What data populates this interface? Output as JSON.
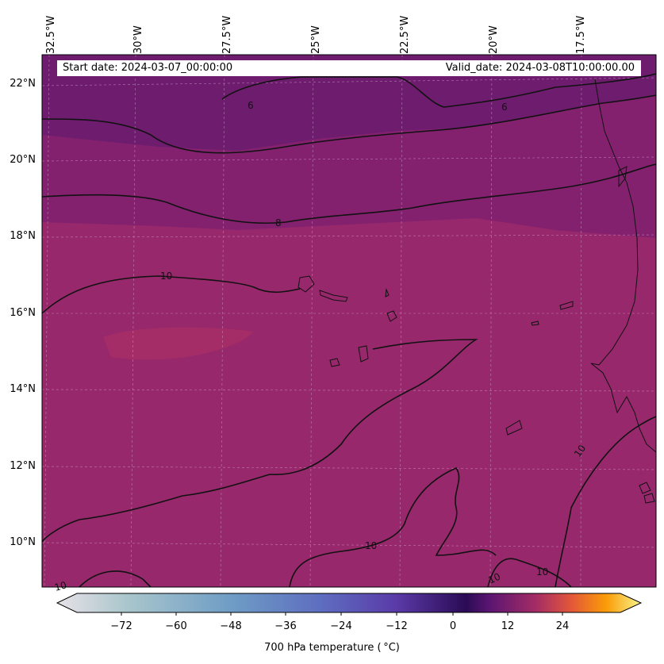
{
  "banner": {
    "start_date": "Start date: 2024-03-07_00:00:00",
    "valid_date": "Valid_date: 2024-03-08T10:00:00.00"
  },
  "map": {
    "longitude_labels": [
      "32.5°W",
      "30°W",
      "27.5°W",
      "25°W",
      "22.5°W",
      "20°W",
      "17.5°W"
    ],
    "latitude_labels": [
      "22°N",
      "20°N",
      "18°N",
      "16°N",
      "14°N",
      "12°N",
      "10°N"
    ],
    "contour_labels": [
      "6",
      "6",
      "8",
      "10",
      "10",
      "10",
      "10",
      "10",
      "10"
    ],
    "colors": {
      "cold_band": "#6e1c6e",
      "mid_band": "#83216f",
      "warm_band": "#97286c",
      "warm_patch": "#a52d67",
      "contour": "#111111",
      "coastline": "#111111"
    }
  },
  "colorbar": {
    "label": "700 hPa temperature ( °C)",
    "tick_labels": [
      "−72",
      "−60",
      "−48",
      "−36",
      "−24",
      "−12",
      "0",
      "12",
      "24"
    ],
    "range": [
      -84,
      36
    ],
    "colors": [
      "#e8e1e8",
      "#a9c6cc",
      "#6e9cc5",
      "#5e6ec0",
      "#5a3ba8",
      "#2b0b55",
      "#5a1572",
      "#a42c65",
      "#e2573a",
      "#fb9b06",
      "#f7f58a"
    ]
  }
}
